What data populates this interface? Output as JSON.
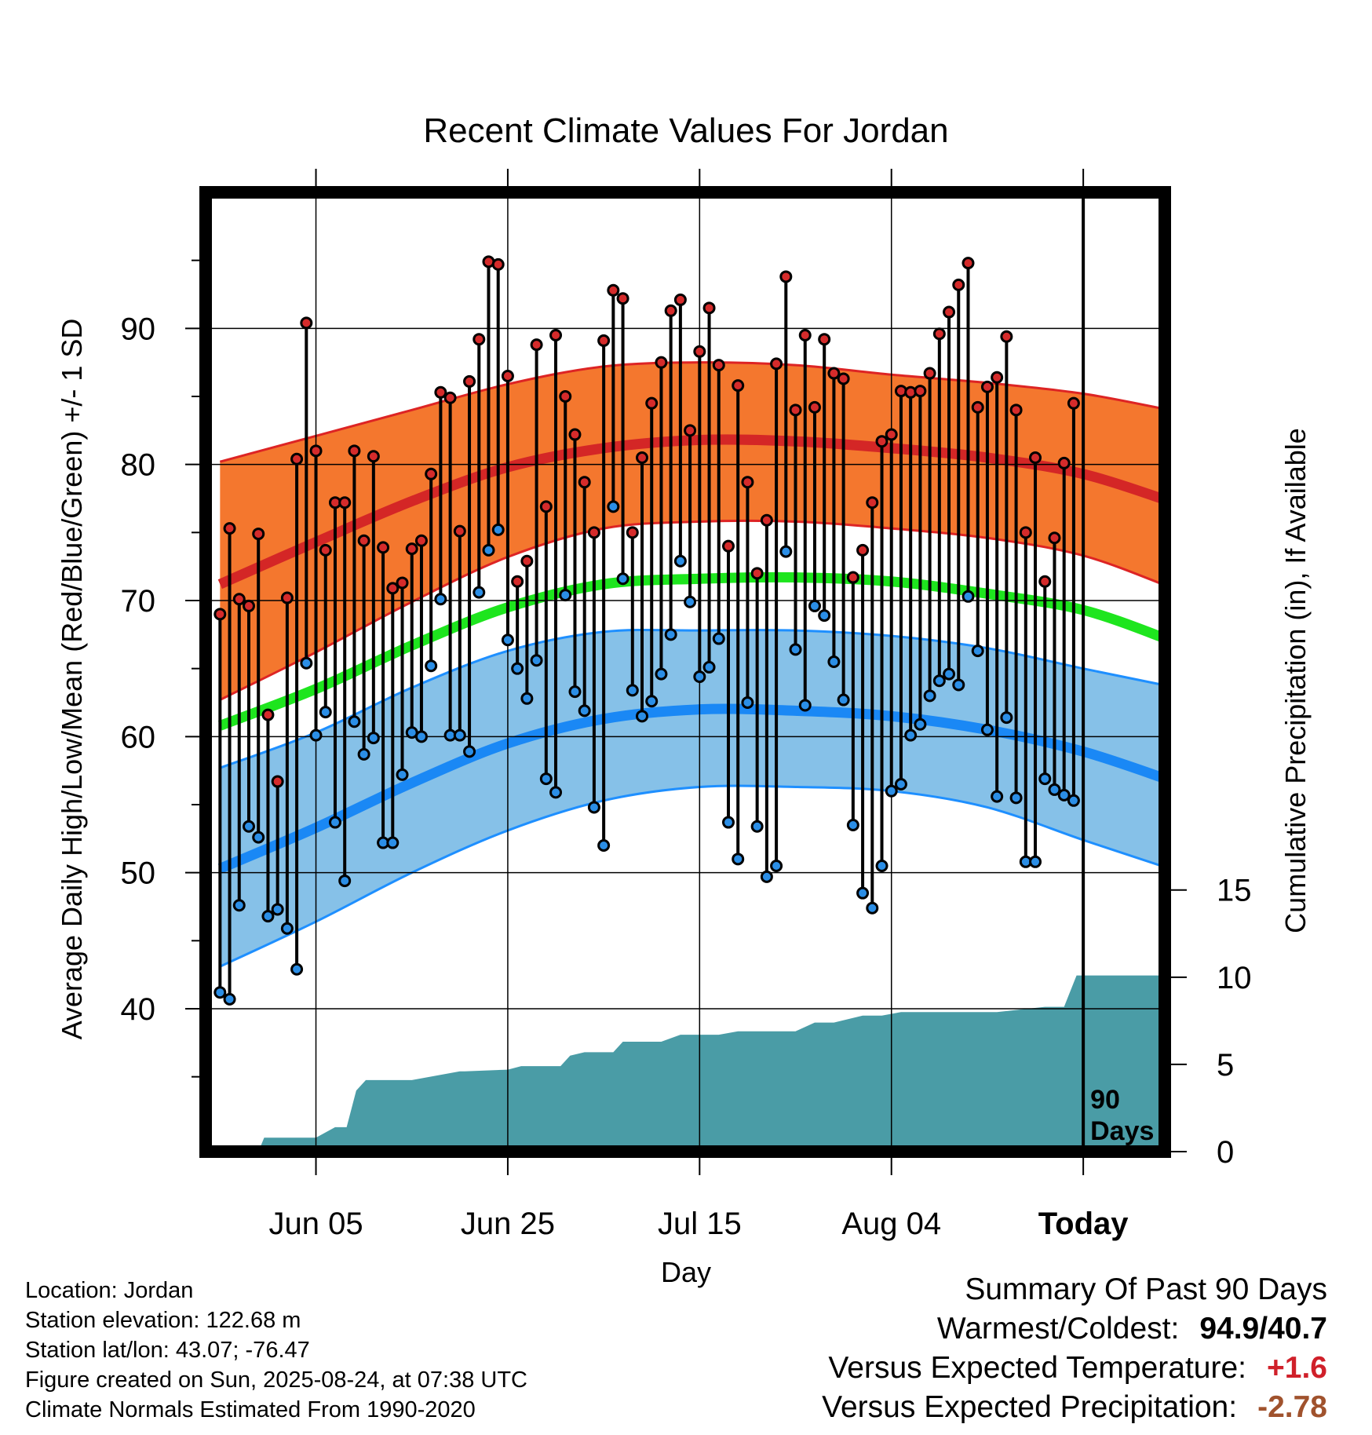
{
  "chart_data": {
    "type": "line",
    "title": "Recent Climate Values For Jordan",
    "xlabel": "Day",
    "ylabel_left": "Average Daily High/Low/Mean (Red/Blue/Green) +/- 1 SD",
    "ylabel_right": "Cumulative Precipitation (in), If Available",
    "x_tick_labels": [
      "Jun 05",
      "Jun 25",
      "Jul 15",
      "Aug 04",
      "Today"
    ],
    "x_tick_days": [
      10,
      30,
      50,
      70,
      90
    ],
    "xlim": [
      -1.5,
      98.5
    ],
    "y_left_ticks": [
      "40",
      "50",
      "60",
      "70",
      "80",
      "90"
    ],
    "ylim_left": [
      29.5,
      100
    ],
    "y_right_ticks": [
      "0",
      "5",
      "10",
      "15"
    ],
    "ylim_right": [
      0,
      55
    ],
    "today_marker": {
      "day": 90,
      "label_line1": "90",
      "label_line2": "Days"
    },
    "grid": true,
    "colors": {
      "high_band": "#f4772e",
      "high_edge": "#dd2424",
      "high_mean": "#d42626",
      "low_band": "#86c1e8",
      "low_edge": "#1e8fff",
      "low_mean": "#1a88f5",
      "mean_line": "#1ee51e",
      "precip": "#4a9ca6",
      "high_point": "#d52b2b",
      "low_point": "#2b8ee6"
    },
    "normals": {
      "days": [
        0,
        10,
        20,
        30,
        40,
        50,
        60,
        70,
        80,
        90,
        99
      ],
      "high_mean": [
        71.2,
        74.3,
        77.3,
        79.8,
        81.2,
        81.8,
        81.7,
        81.2,
        80.5,
        79.3,
        77.3
      ],
      "high_upper": [
        80.2,
        82.1,
        84.0,
        85.9,
        87.2,
        87.5,
        87.3,
        86.6,
        86.0,
        85.2,
        84.0
      ],
      "high_lower": [
        62.7,
        66.2,
        69.9,
        73.2,
        75.3,
        75.8,
        75.8,
        75.3,
        74.6,
        73.3,
        71.0
      ],
      "mean": [
        60.8,
        63.5,
        66.7,
        69.5,
        71.2,
        71.6,
        71.7,
        71.4,
        70.5,
        69.3,
        67.1
      ],
      "low_mean": [
        50.3,
        53.3,
        56.6,
        59.5,
        61.3,
        62.0,
        61.9,
        61.5,
        60.5,
        58.9,
        56.8
      ],
      "low_upper": [
        57.7,
        60.3,
        63.6,
        66.3,
        67.7,
        67.8,
        67.8,
        67.4,
        66.5,
        65.0,
        63.7
      ],
      "low_lower": [
        43.1,
        46.4,
        50.0,
        53.1,
        55.3,
        56.3,
        56.3,
        56.0,
        54.8,
        52.4,
        50.3
      ]
    },
    "daily_high": [
      69.0,
      75.3,
      70.1,
      69.6,
      74.9,
      61.6,
      56.7,
      70.2,
      80.4,
      90.4,
      81.0,
      73.7,
      77.2,
      77.2,
      81.0,
      74.4,
      80.6,
      73.9,
      70.9,
      71.3,
      73.8,
      74.4,
      79.3,
      85.3,
      84.9,
      75.1,
      86.1,
      89.2,
      94.9,
      94.7,
      86.5,
      71.4,
      72.9,
      88.8,
      76.9,
      89.5,
      85.0,
      82.2,
      78.7,
      75.0,
      89.1,
      92.8,
      92.2,
      75.0,
      80.5,
      84.5,
      87.5,
      91.3,
      92.1,
      82.5,
      88.3,
      91.5,
      87.3,
      74.0,
      85.8,
      78.7,
      72.0,
      75.9,
      87.4,
      93.8,
      84.0,
      89.5,
      84.2,
      89.2,
      86.7,
      86.3,
      71.7,
      73.7,
      77.2,
      81.7,
      82.2,
      85.4,
      85.3,
      85.4,
      86.7,
      89.6,
      91.2,
      93.2,
      94.8,
      84.2,
      85.7,
      86.4,
      89.4,
      84.0,
      75.0,
      80.5,
      71.4,
      74.6,
      80.1,
      84.5
    ],
    "daily_low": [
      41.2,
      40.7,
      47.6,
      53.4,
      52.6,
      46.8,
      47.3,
      45.9,
      42.9,
      65.4,
      60.1,
      61.8,
      53.7,
      49.4,
      61.1,
      58.7,
      59.9,
      52.2,
      52.2,
      57.2,
      60.3,
      60.0,
      65.2,
      70.1,
      60.1,
      60.1,
      58.9,
      70.6,
      73.7,
      75.2,
      67.1,
      65.0,
      62.8,
      65.6,
      56.9,
      55.9,
      70.4,
      63.3,
      61.9,
      54.8,
      52.0,
      76.9,
      71.6,
      63.4,
      61.5,
      62.6,
      64.6,
      67.5,
      72.9,
      69.9,
      64.4,
      65.1,
      67.2,
      53.7,
      51.0,
      62.5,
      53.4,
      49.7,
      50.5,
      73.6,
      66.4,
      62.3,
      69.6,
      68.9,
      65.5,
      62.7,
      53.5,
      48.5,
      47.4,
      50.5,
      56.0,
      56.5,
      60.1,
      60.9,
      63.0,
      64.1,
      64.6,
      63.8,
      70.3,
      66.3,
      60.5,
      55.6,
      61.4,
      55.5,
      50.8,
      50.8,
      56.9,
      56.1,
      55.7,
      55.3
    ],
    "cumulative_precip": {
      "days": [
        0,
        4,
        4.6,
        10,
        12,
        13.2,
        14.2,
        15.2,
        20,
        25,
        25.5,
        30,
        31.4,
        35.5,
        36.5,
        38,
        41,
        42,
        46,
        48,
        52,
        54,
        60,
        62,
        64,
        67,
        69,
        71,
        81,
        86,
        88,
        89.3,
        90,
        98.5
      ],
      "values": [
        0,
        0,
        0.8,
        0.8,
        1.4,
        1.4,
        3.5,
        4.1,
        4.1,
        4.6,
        4.6,
        4.7,
        4.9,
        4.9,
        5.5,
        5.7,
        5.7,
        6.3,
        6.3,
        6.7,
        6.7,
        6.9,
        6.9,
        7.4,
        7.4,
        7.8,
        7.8,
        8.0,
        8.0,
        8.3,
        8.3,
        10.1,
        10.1,
        10.1
      ]
    }
  },
  "footer": {
    "location": "Location: Jordan",
    "elevation": "Station elevation: 122.68 m",
    "latlon": "Station lat/lon: 43.07; -76.47",
    "created": "Figure created on Sun, 2025-08-24, at 07:38 UTC",
    "normals": "Climate Normals Estimated From 1990-2020"
  },
  "summary": {
    "title": "Summary Of Past 90 Days",
    "warmest_label": "Warmest/Coldest:",
    "warmest_value": "94.9/40.7",
    "temp_label": "Versus Expected Temperature:",
    "temp_value": "+1.6",
    "precip_label": "Versus Expected Precipitation:",
    "precip_value": "-2.78"
  }
}
